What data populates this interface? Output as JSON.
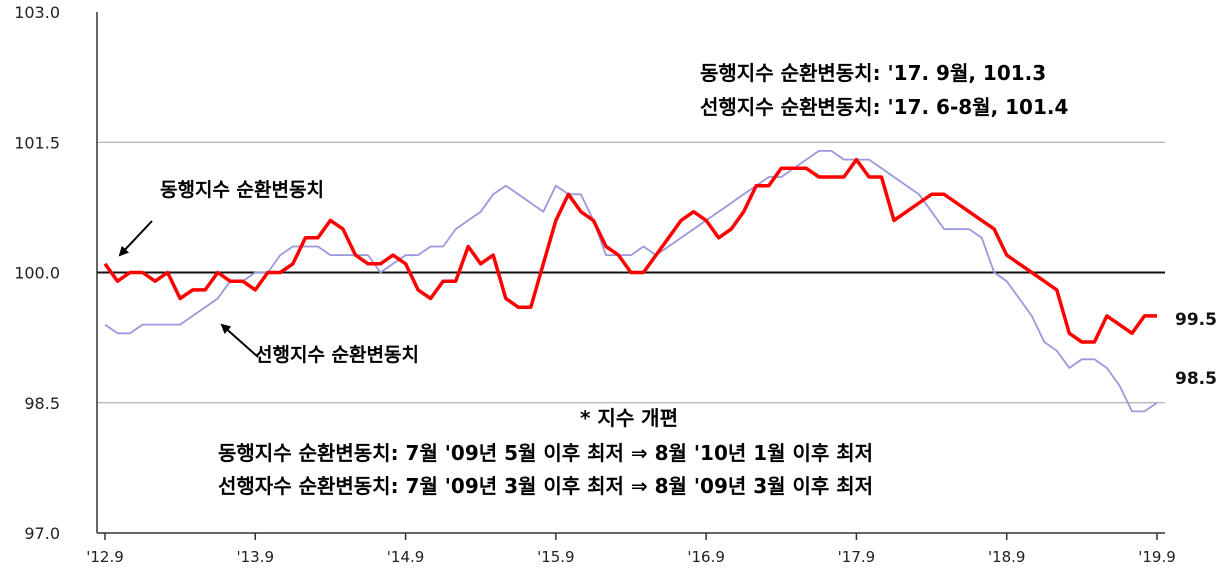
{
  "chart_data": {
    "type": "line",
    "yticks": [
      "103.0",
      "101.5",
      "100.0",
      "98.5",
      "97.0"
    ],
    "ylim": [
      97.0,
      103.0
    ],
    "xticks": [
      "'12.9",
      "'13.9",
      "'14.9",
      "'15.9",
      "'16.9",
      "'17.9",
      "'18.9",
      "'19.9"
    ],
    "series": [
      {
        "name": "동행지수 순환변동치",
        "color": "#ff0000",
        "values": [
          100.1,
          99.9,
          100.0,
          100.0,
          99.9,
          100.0,
          99.7,
          99.8,
          99.8,
          100.0,
          99.9,
          99.9,
          99.8,
          100.0,
          100.0,
          100.1,
          100.4,
          100.4,
          100.6,
          100.5,
          100.2,
          100.1,
          100.1,
          100.2,
          100.1,
          99.8,
          99.7,
          99.9,
          99.9,
          100.3,
          100.1,
          100.2,
          99.7,
          99.6,
          99.6,
          100.1,
          100.6,
          100.9,
          100.7,
          100.6,
          100.3,
          100.2,
          100.0,
          100.0,
          100.2,
          100.4,
          100.6,
          100.7,
          100.6,
          100.4,
          100.5,
          100.7,
          101.0,
          101.0,
          101.2,
          101.2,
          101.2,
          101.1,
          101.1,
          101.1,
          101.3,
          101.1,
          101.1,
          100.6,
          100.7,
          100.8,
          100.9,
          100.9,
          100.8,
          100.7,
          100.6,
          100.5,
          100.2,
          100.1,
          100.0,
          99.9,
          99.8,
          99.3,
          99.2,
          99.2,
          99.5,
          99.4,
          99.3,
          99.5,
          99.5
        ]
      },
      {
        "name": "선행지수 순환변동치",
        "color": "#9999dd",
        "values": [
          99.4,
          99.3,
          99.3,
          99.4,
          99.4,
          99.4,
          99.4,
          99.5,
          99.6,
          99.7,
          99.9,
          99.9,
          100.0,
          100.0,
          100.2,
          100.3,
          100.3,
          100.3,
          100.2,
          100.2,
          100.2,
          100.2,
          100.0,
          100.1,
          100.2,
          100.2,
          100.3,
          100.3,
          100.5,
          100.6,
          100.7,
          100.9,
          101.0,
          100.9,
          100.8,
          100.7,
          101.0,
          100.9,
          100.9,
          100.6,
          100.2,
          100.2,
          100.2,
          100.3,
          100.2,
          100.3,
          100.4,
          100.5,
          100.6,
          100.7,
          100.8,
          100.9,
          101.0,
          101.1,
          101.1,
          101.2,
          101.3,
          101.4,
          101.4,
          101.3,
          101.3,
          101.3,
          101.2,
          101.1,
          101.0,
          100.9,
          100.7,
          100.5,
          100.5,
          100.5,
          100.4,
          100.0,
          99.9,
          99.7,
          99.5,
          99.2,
          99.1,
          98.9,
          99.0,
          99.0,
          98.9,
          98.7,
          98.4,
          98.4,
          98.5
        ]
      }
    ],
    "end_labels": [
      "99.5",
      "98.5"
    ],
    "annotations": {
      "top_line1": "동행지수 순환변동치: '17. 9월, 101.3",
      "top_line2": "선행지수 순환변동치: '17. 6-8월, 101.4",
      "coincident_label": "동행지수 순환변동치",
      "leading_label": "선행지수 순환변동치",
      "note_title": "* 지수 개편",
      "note_line1": "동행지수 순환변동치: 7월 '09년 5월 이후 최저 ⇒ 8월 '10년 1월 이후 최저",
      "note_line2": "선행자수 순환변동치: 7월 '09년 3월 이후 최저 ⇒ 8월 '09년 3월 이후 최저"
    },
    "grid": true,
    "legend": "none"
  }
}
